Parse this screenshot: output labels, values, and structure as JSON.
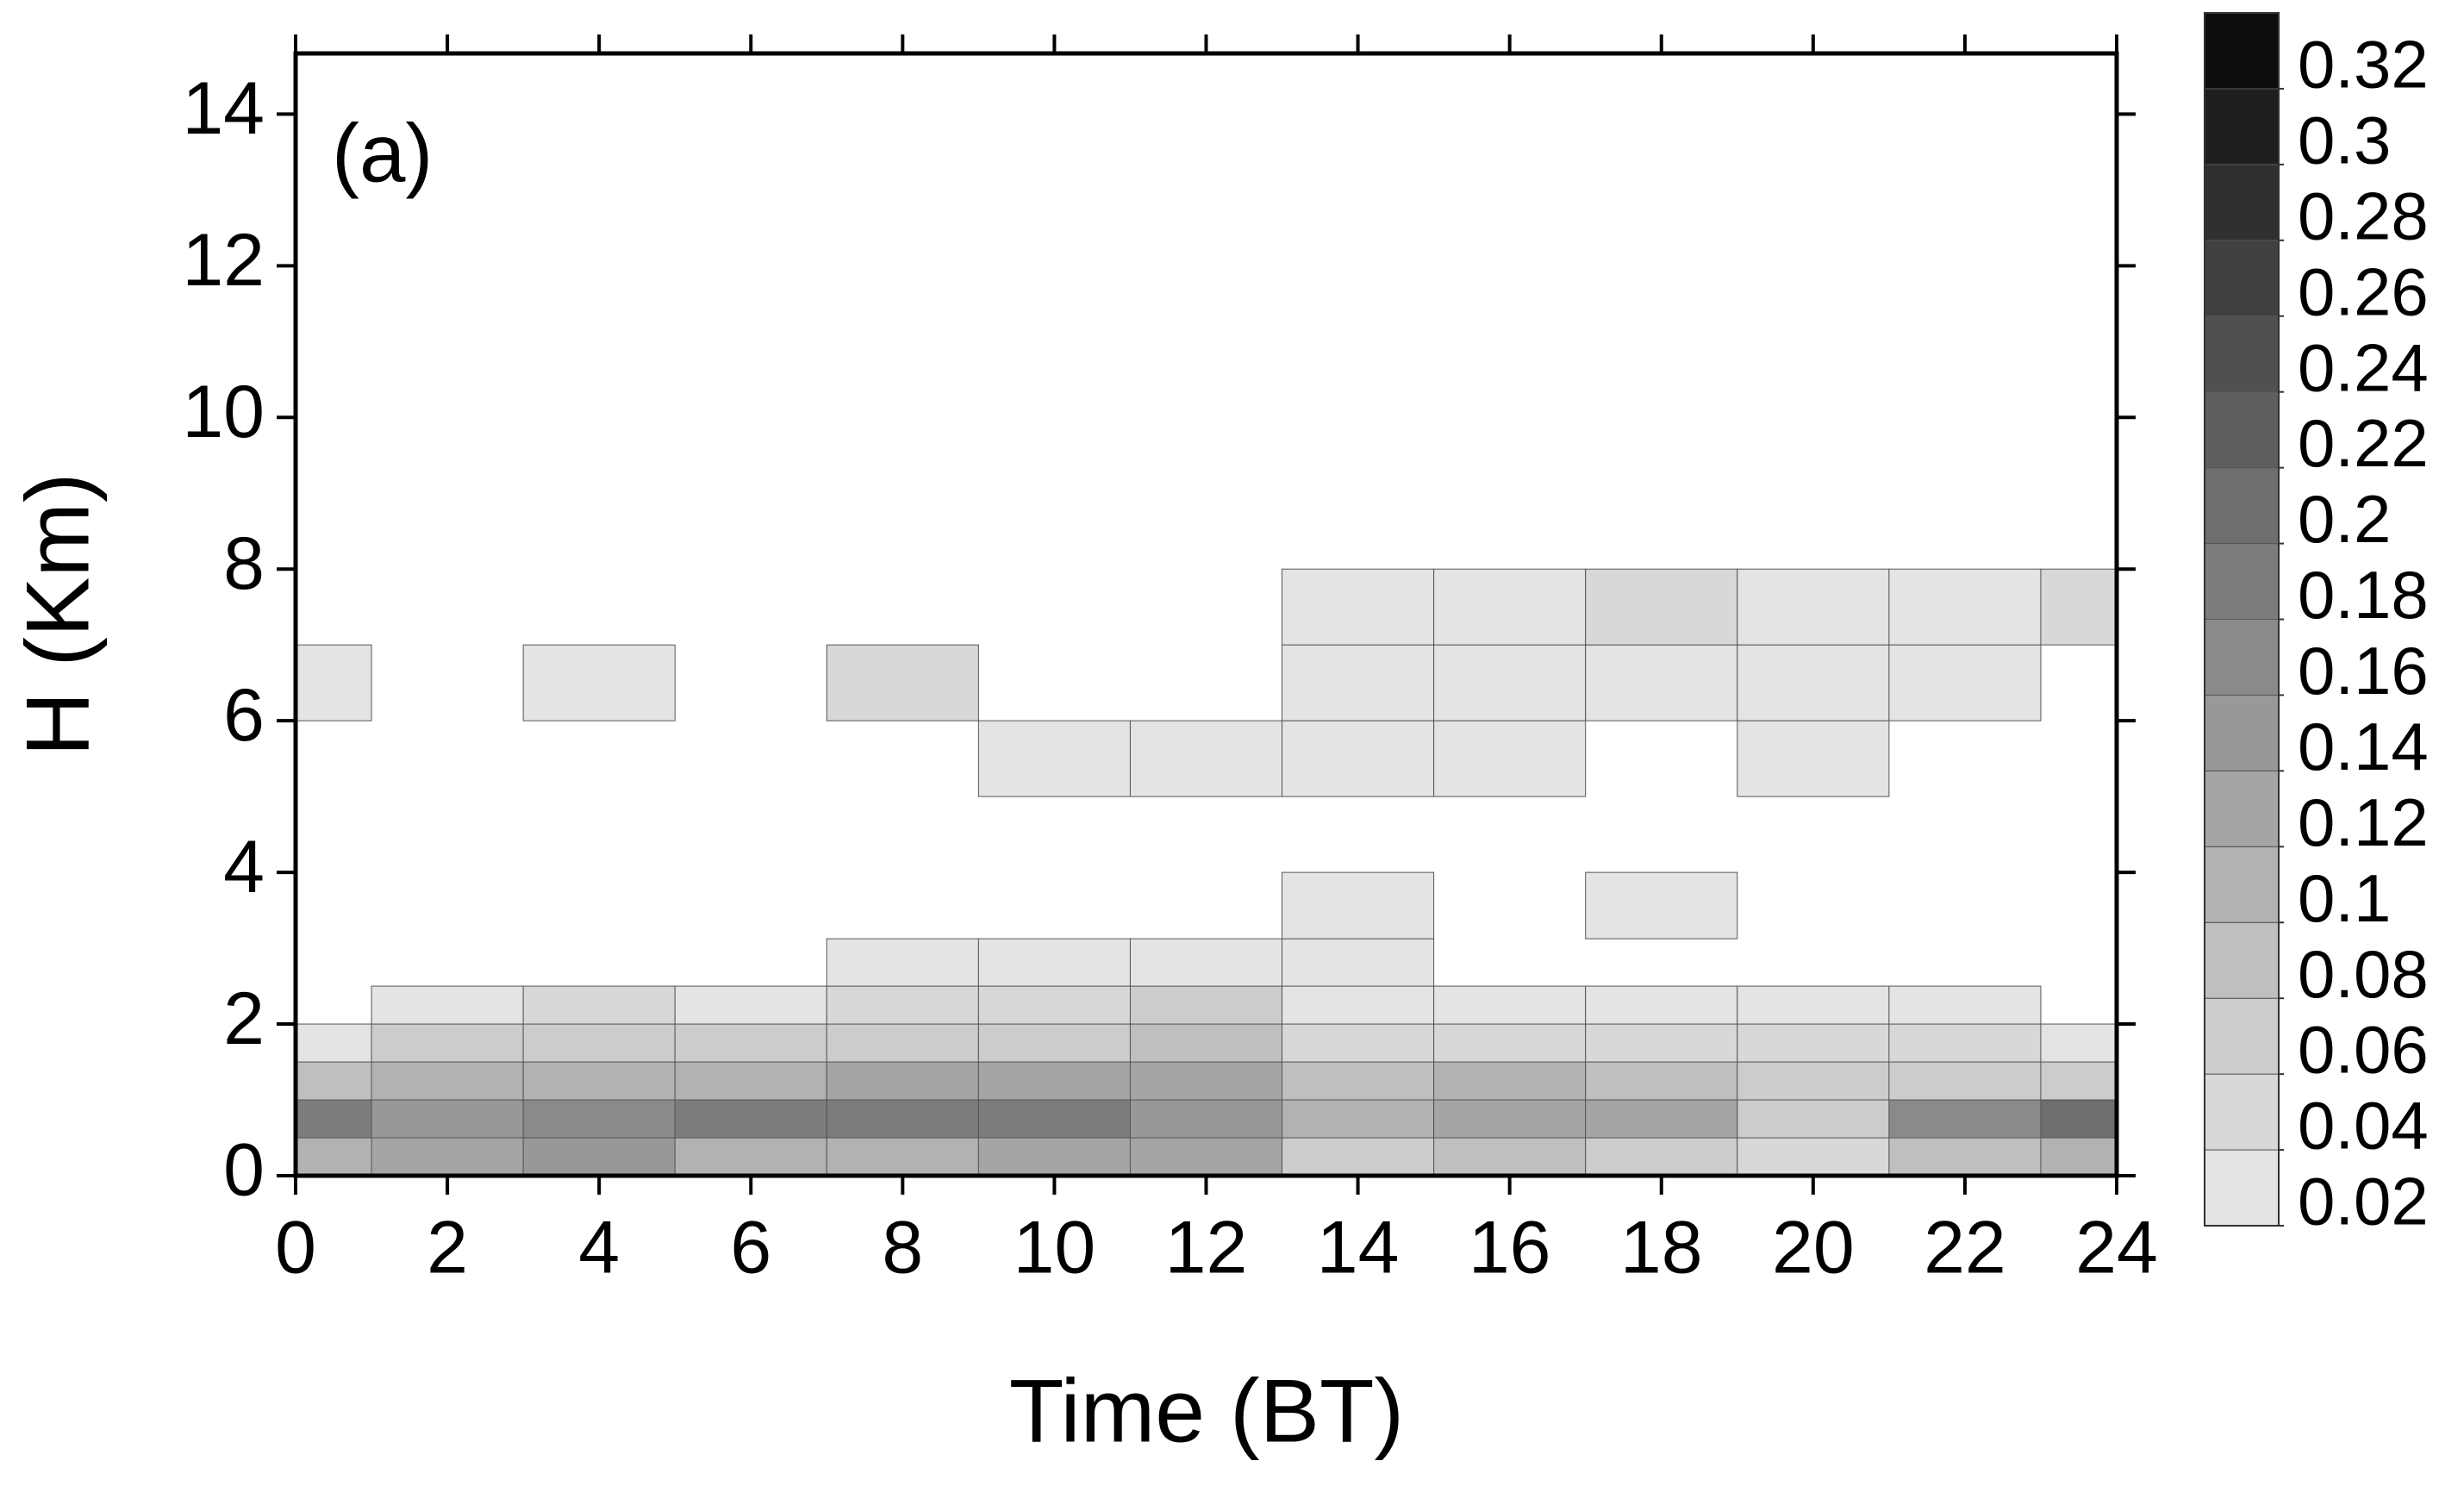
{
  "chart_data": {
    "type": "contour",
    "annotation": "(a)",
    "x_label": "Time  (BT)",
    "y_label": "H (Km)",
    "x": [
      0,
      2,
      4,
      6,
      8,
      10,
      12,
      14,
      16,
      18,
      20,
      22,
      24
    ],
    "y": [
      0.25,
      0.75,
      1.25,
      1.75,
      2.25,
      2.75,
      3.5,
      4.5,
      5.5,
      6.5,
      7.5
    ],
    "z": [
      [
        0.1,
        0.12,
        0.14,
        0.1,
        0.1,
        0.12,
        0.12,
        0.06,
        0.08,
        0.06,
        0.04,
        0.08,
        0.1
      ],
      [
        0.18,
        0.14,
        0.16,
        0.18,
        0.18,
        0.18,
        0.14,
        0.1,
        0.12,
        0.12,
        0.06,
        0.16,
        0.2
      ],
      [
        0.08,
        0.1,
        0.1,
        0.1,
        0.12,
        0.12,
        0.12,
        0.08,
        0.1,
        0.08,
        0.06,
        0.06,
        0.06
      ],
      [
        0.02,
        0.06,
        0.06,
        0.06,
        0.06,
        0.06,
        0.08,
        0.04,
        0.04,
        0.04,
        0.04,
        0.04,
        0.02
      ],
      [
        0,
        0.02,
        0.04,
        0.02,
        0.04,
        0.04,
        0.06,
        0.02,
        0.02,
        0.02,
        0.02,
        0.02,
        0
      ],
      [
        0,
        0,
        0,
        0,
        0.02,
        0.02,
        0.02,
        0.02,
        0,
        0,
        0,
        0,
        0
      ],
      [
        0,
        0,
        0,
        0,
        0,
        0,
        0,
        0.02,
        0,
        0.02,
        0,
        0,
        0
      ],
      [
        0,
        0,
        0,
        0,
        0,
        0,
        0,
        0,
        0,
        0,
        0,
        0,
        0
      ],
      [
        0,
        0,
        0,
        0,
        0,
        0.02,
        0.02,
        0.02,
        0.02,
        0,
        0.02,
        0,
        0
      ],
      [
        0.02,
        0,
        0.02,
        0,
        0.04,
        0,
        0,
        0.02,
        0.02,
        0.02,
        0.02,
        0.02,
        0
      ],
      [
        0,
        0,
        0,
        0,
        0,
        0,
        0,
        0.02,
        0.02,
        0.04,
        0.02,
        0.02,
        0.04
      ]
    ],
    "xlim": [
      0,
      24
    ],
    "xticks": [
      0,
      2,
      4,
      6,
      8,
      10,
      12,
      14,
      16,
      18,
      20,
      22,
      24
    ],
    "ylim": [
      0,
      14.8
    ],
    "yticks": [
      0,
      2,
      4,
      6,
      8,
      10,
      12,
      14
    ],
    "zlim": [
      0.02,
      0.34
    ],
    "zticks": [
      0.02,
      0.04,
      0.06,
      0.08,
      0.1,
      0.12,
      0.14,
      0.16,
      0.18,
      0.2,
      0.22,
      0.24,
      0.26,
      0.28,
      0.3,
      0.32
    ],
    "colors": [
      "#e4e4e4",
      "#d8d8d8",
      "#cccccc",
      "#bfbfbf",
      "#b2b2b2",
      "#a5a5a5",
      "#989898",
      "#8a8a8a",
      "#7c7c7c",
      "#6e6e6e",
      "#5f5f5f",
      "#505050",
      "#404040",
      "#303030",
      "#1f1f1f",
      "#0d0d0d"
    ]
  }
}
